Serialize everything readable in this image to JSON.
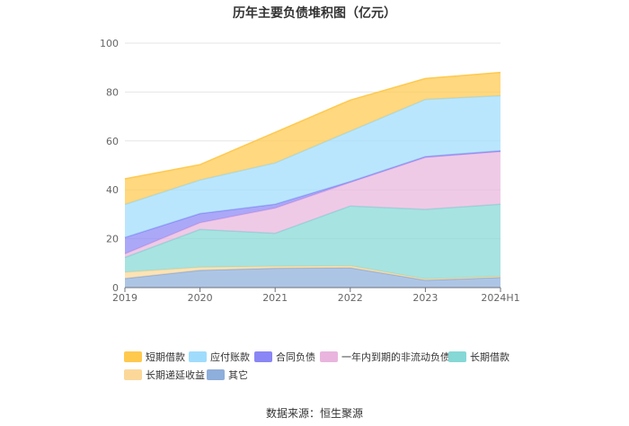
{
  "chart_data": {
    "type": "area",
    "title": "历年主要负债堆积图（亿元）",
    "categories": [
      "2019",
      "2020",
      "2021",
      "2022",
      "2023",
      "2024H1"
    ],
    "ylim": [
      0,
      100
    ],
    "yticks": [
      0,
      20,
      40,
      60,
      80,
      100
    ],
    "stacked": true,
    "series": [
      {
        "name": "其它",
        "color": "#8eaedb",
        "values": [
          3.7,
          7.1,
          7.9,
          8.1,
          3.0,
          4.2
        ]
      },
      {
        "name": "长期递延收益",
        "color": "#fbd89a",
        "values": [
          2.6,
          1.2,
          0.8,
          0.8,
          0.5,
          0.4
        ]
      },
      {
        "name": "长期借款",
        "color": "#85d8d6",
        "values": [
          6.0,
          15.5,
          13.5,
          24.5,
          28.5,
          29.5
        ]
      },
      {
        "name": "一年内到期的非流动负债",
        "color": "#e9b5de",
        "values": [
          1.5,
          2.7,
          10.3,
          9.6,
          21.2,
          21.5
        ]
      },
      {
        "name": "合同负债",
        "color": "#8a86f5",
        "values": [
          6.7,
          3.8,
          1.6,
          0.4,
          0.4,
          0.4
        ]
      },
      {
        "name": "应付账款",
        "color": "#9fdcfc",
        "values": [
          13.5,
          13.7,
          16.9,
          20.6,
          23.4,
          22.5
        ]
      },
      {
        "name": "短期借款",
        "color": "#ffc94d",
        "values": [
          10.5,
          6.3,
          12.5,
          12.7,
          8.5,
          9.5
        ]
      }
    ],
    "legend": [
      {
        "name": "短期借款",
        "color": "#ffc94d"
      },
      {
        "name": "应付账款",
        "color": "#9fdcfc"
      },
      {
        "name": "合同负债",
        "color": "#8a86f5"
      },
      {
        "name": "一年内到期的非流动负债",
        "color": "#e9b5de"
      },
      {
        "name": "长期借款",
        "color": "#85d8d6"
      },
      {
        "name": "长期递延收益",
        "color": "#fbd89a"
      },
      {
        "name": "其它",
        "color": "#8eaedb"
      }
    ]
  },
  "source": "数据来源：恒生聚源"
}
